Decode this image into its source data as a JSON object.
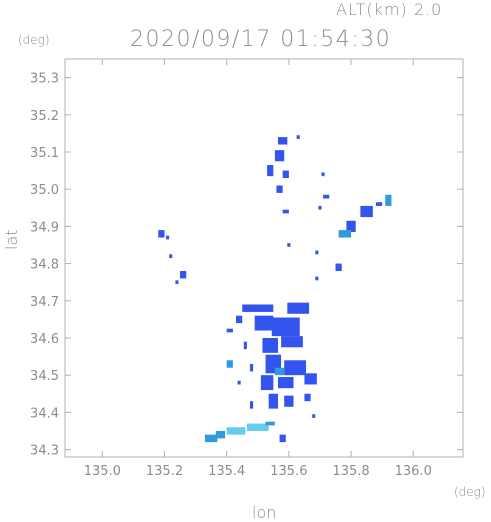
{
  "header": {
    "altitude_label": "ALT(km) 2.0",
    "timestamp": "2020/09/17 01:54:30",
    "lat_unit": "(deg)",
    "lon_unit": "(deg)"
  },
  "axes": {
    "xlabel": "lon",
    "ylabel": "lat",
    "xticks": [
      "135.0",
      "135.2",
      "135.4",
      "135.6",
      "135.8",
      "136.0"
    ],
    "yticks": [
      "35.3",
      "35.2",
      "35.1",
      "35.0",
      "34.9",
      "34.8",
      "34.7",
      "34.6",
      "34.5",
      "34.4",
      "34.3"
    ]
  },
  "map": {
    "type": "radar_echo_map",
    "lon_range": [
      134.88,
      136.16
    ],
    "lat_range": [
      34.28,
      35.35
    ],
    "colors": {
      "weak": "#3355ee",
      "moderate": "#3399dd",
      "light": "#66ccee",
      "frame": "#b0b0b0"
    },
    "echoes": [
      {
        "lon": 135.58,
        "lat": 35.13,
        "w": 0.03,
        "h": 0.02,
        "level": "weak"
      },
      {
        "lon": 135.57,
        "lat": 35.09,
        "w": 0.03,
        "h": 0.03,
        "level": "weak"
      },
      {
        "lon": 135.63,
        "lat": 35.14,
        "w": 0.01,
        "h": 0.01,
        "level": "weak"
      },
      {
        "lon": 135.54,
        "lat": 35.05,
        "w": 0.02,
        "h": 0.03,
        "level": "weak"
      },
      {
        "lon": 135.59,
        "lat": 35.04,
        "w": 0.02,
        "h": 0.02,
        "level": "weak"
      },
      {
        "lon": 135.57,
        "lat": 35.0,
        "w": 0.02,
        "h": 0.02,
        "level": "weak"
      },
      {
        "lon": 135.71,
        "lat": 35.04,
        "w": 0.01,
        "h": 0.01,
        "level": "weak"
      },
      {
        "lon": 135.72,
        "lat": 34.98,
        "w": 0.02,
        "h": 0.01,
        "level": "weak"
      },
      {
        "lon": 135.7,
        "lat": 34.95,
        "w": 0.01,
        "h": 0.01,
        "level": "weak"
      },
      {
        "lon": 135.59,
        "lat": 34.94,
        "w": 0.02,
        "h": 0.01,
        "level": "weak"
      },
      {
        "lon": 135.85,
        "lat": 34.94,
        "w": 0.04,
        "h": 0.03,
        "level": "weak"
      },
      {
        "lon": 135.8,
        "lat": 34.9,
        "w": 0.03,
        "h": 0.03,
        "level": "weak"
      },
      {
        "lon": 135.78,
        "lat": 34.88,
        "w": 0.04,
        "h": 0.02,
        "level": "moderate"
      },
      {
        "lon": 135.92,
        "lat": 34.97,
        "w": 0.02,
        "h": 0.03,
        "level": "moderate"
      },
      {
        "lon": 135.89,
        "lat": 34.96,
        "w": 0.02,
        "h": 0.01,
        "level": "weak"
      },
      {
        "lon": 135.19,
        "lat": 34.88,
        "w": 0.02,
        "h": 0.02,
        "level": "weak"
      },
      {
        "lon": 135.21,
        "lat": 34.87,
        "w": 0.01,
        "h": 0.01,
        "level": "weak"
      },
      {
        "lon": 135.22,
        "lat": 34.82,
        "w": 0.01,
        "h": 0.01,
        "level": "weak"
      },
      {
        "lon": 135.26,
        "lat": 34.77,
        "w": 0.02,
        "h": 0.02,
        "level": "weak"
      },
      {
        "lon": 135.24,
        "lat": 34.75,
        "w": 0.01,
        "h": 0.01,
        "level": "weak"
      },
      {
        "lon": 135.69,
        "lat": 34.83,
        "w": 0.01,
        "h": 0.01,
        "level": "weak"
      },
      {
        "lon": 135.76,
        "lat": 34.79,
        "w": 0.02,
        "h": 0.02,
        "level": "weak"
      },
      {
        "lon": 135.6,
        "lat": 34.85,
        "w": 0.01,
        "h": 0.01,
        "level": "weak"
      },
      {
        "lon": 135.69,
        "lat": 34.76,
        "w": 0.01,
        "h": 0.01,
        "level": "weak"
      },
      {
        "lon": 135.5,
        "lat": 34.68,
        "w": 0.1,
        "h": 0.02,
        "level": "weak"
      },
      {
        "lon": 135.63,
        "lat": 34.68,
        "w": 0.07,
        "h": 0.03,
        "level": "weak"
      },
      {
        "lon": 135.52,
        "lat": 34.64,
        "w": 0.06,
        "h": 0.04,
        "level": "weak"
      },
      {
        "lon": 135.59,
        "lat": 34.63,
        "w": 0.09,
        "h": 0.05,
        "level": "weak"
      },
      {
        "lon": 135.54,
        "lat": 34.58,
        "w": 0.05,
        "h": 0.04,
        "level": "weak"
      },
      {
        "lon": 135.61,
        "lat": 34.59,
        "w": 0.07,
        "h": 0.03,
        "level": "weak"
      },
      {
        "lon": 135.55,
        "lat": 34.53,
        "w": 0.05,
        "h": 0.05,
        "level": "weak"
      },
      {
        "lon": 135.62,
        "lat": 34.52,
        "w": 0.07,
        "h": 0.04,
        "level": "weak"
      },
      {
        "lon": 135.53,
        "lat": 34.48,
        "w": 0.04,
        "h": 0.04,
        "level": "weak"
      },
      {
        "lon": 135.59,
        "lat": 34.48,
        "w": 0.05,
        "h": 0.03,
        "level": "weak"
      },
      {
        "lon": 135.67,
        "lat": 34.49,
        "w": 0.04,
        "h": 0.03,
        "level": "weak"
      },
      {
        "lon": 135.55,
        "lat": 34.43,
        "w": 0.03,
        "h": 0.04,
        "level": "weak"
      },
      {
        "lon": 135.6,
        "lat": 34.43,
        "w": 0.03,
        "h": 0.03,
        "level": "weak"
      },
      {
        "lon": 135.66,
        "lat": 34.44,
        "w": 0.02,
        "h": 0.02,
        "level": "weak"
      },
      {
        "lon": 135.57,
        "lat": 34.51,
        "w": 0.03,
        "h": 0.02,
        "level": "moderate"
      },
      {
        "lon": 135.44,
        "lat": 34.65,
        "w": 0.02,
        "h": 0.02,
        "level": "weak"
      },
      {
        "lon": 135.41,
        "lat": 34.62,
        "w": 0.02,
        "h": 0.01,
        "level": "weak"
      },
      {
        "lon": 135.46,
        "lat": 34.58,
        "w": 0.01,
        "h": 0.02,
        "level": "weak"
      },
      {
        "lon": 135.41,
        "lat": 34.53,
        "w": 0.02,
        "h": 0.02,
        "level": "moderate"
      },
      {
        "lon": 135.44,
        "lat": 34.48,
        "w": 0.01,
        "h": 0.01,
        "level": "weak"
      },
      {
        "lon": 135.48,
        "lat": 34.52,
        "w": 0.01,
        "h": 0.02,
        "level": "weak"
      },
      {
        "lon": 135.48,
        "lat": 34.42,
        "w": 0.01,
        "h": 0.02,
        "level": "weak"
      },
      {
        "lon": 135.68,
        "lat": 34.39,
        "w": 0.01,
        "h": 0.01,
        "level": "weak"
      },
      {
        "lon": 135.5,
        "lat": 34.36,
        "w": 0.07,
        "h": 0.02,
        "level": "light"
      },
      {
        "lon": 135.43,
        "lat": 34.35,
        "w": 0.06,
        "h": 0.02,
        "level": "light"
      },
      {
        "lon": 135.38,
        "lat": 34.34,
        "w": 0.03,
        "h": 0.02,
        "level": "moderate"
      },
      {
        "lon": 135.35,
        "lat": 34.33,
        "w": 0.04,
        "h": 0.02,
        "level": "moderate"
      },
      {
        "lon": 135.54,
        "lat": 34.37,
        "w": 0.03,
        "h": 0.01,
        "level": "moderate"
      },
      {
        "lon": 135.58,
        "lat": 34.33,
        "w": 0.02,
        "h": 0.02,
        "level": "weak"
      }
    ]
  }
}
